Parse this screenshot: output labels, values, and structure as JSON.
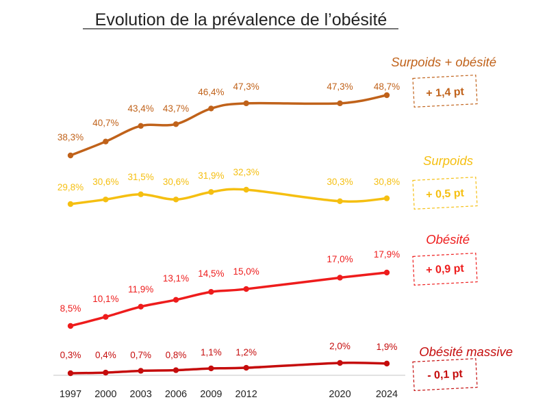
{
  "chart_data": {
    "type": "line",
    "title": "Evolution de la prévalence de l’obésité",
    "xlabel": "",
    "ylabel": "",
    "grid": false,
    "categories": [
      "1997",
      "2000",
      "2003",
      "2006",
      "2009",
      "2012",
      "2020",
      "2024"
    ],
    "x": [
      1997,
      2000,
      2003,
      2006,
      2009,
      2012,
      2020,
      2024
    ],
    "series": [
      {
        "name": "Surpoids + obésité",
        "color": "#c0621a",
        "delta": "+ 1,4 pt",
        "values": [
          38.3,
          40.7,
          43.4,
          43.7,
          46.4,
          47.3,
          47.3,
          48.7
        ],
        "labels": [
          "38,3%",
          "40,7%",
          "43,4%",
          "43,7%",
          "46,4%",
          "47,3%",
          "47,3%",
          "48,7%"
        ]
      },
      {
        "name": "Surpoids",
        "color": "#f5bf11",
        "delta": "+ 0,5 pt",
        "values": [
          29.8,
          30.6,
          31.5,
          30.6,
          31.9,
          32.3,
          30.3,
          30.8
        ],
        "labels": [
          "29,8%",
          "30,6%",
          "31,5%",
          "30,6%",
          "31,9%",
          "32,3%",
          "30,3%",
          "30,8%"
        ]
      },
      {
        "name": "Obésité",
        "color": "#ee1c1c",
        "delta": "+ 0,9 pt",
        "values": [
          8.5,
          10.1,
          11.9,
          13.1,
          14.5,
          15.0,
          17.0,
          17.9
        ],
        "labels": [
          "8,5%",
          "10,1%",
          "11,9%",
          "13,1%",
          "14,5%",
          "15,0%",
          "17,0%",
          "17,9%"
        ]
      },
      {
        "name": "Obésité massive",
        "color": "#c50c0c",
        "delta": "- 0,1 pt",
        "values": [
          0.3,
          0.4,
          0.7,
          0.8,
          1.1,
          1.2,
          2.0,
          1.9
        ],
        "labels": [
          "0,3%",
          "0,4%",
          "0,7%",
          "0,8%",
          "1,1%",
          "1,2%",
          "2,0%",
          "1,9%"
        ]
      }
    ]
  }
}
